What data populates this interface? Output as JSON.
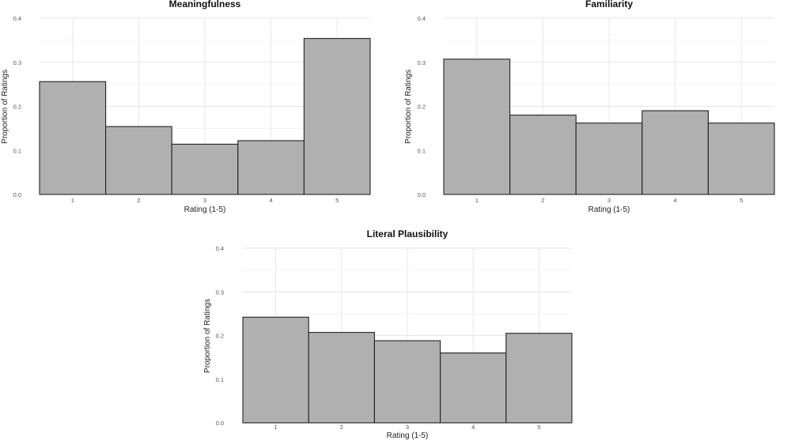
{
  "chart_data": [
    {
      "type": "bar",
      "title": "Meaningfulness",
      "xlabel": "Rating (1-5)",
      "ylabel": "Proportion of Ratings",
      "categories": [
        "1",
        "2",
        "3",
        "4",
        "5"
      ],
      "values": [
        0.256,
        0.154,
        0.114,
        0.122,
        0.354
      ],
      "ylim": [
        0,
        0.4
      ],
      "yticks": [
        "0.0",
        "0.1",
        "0.2",
        "0.3",
        "0.4"
      ],
      "grid": true,
      "bar_color": "#b0b0b0"
    },
    {
      "type": "bar",
      "title": "Familiarity",
      "xlabel": "Rating (1-5)",
      "ylabel": "Proportion of Ratings",
      "categories": [
        "1",
        "2",
        "3",
        "4",
        "5"
      ],
      "values": [
        0.307,
        0.18,
        0.162,
        0.19,
        0.162
      ],
      "ylim": [
        0,
        0.4
      ],
      "yticks": [
        "0.0",
        "0.1",
        "0.2",
        "0.3",
        "0.4"
      ],
      "grid": true,
      "bar_color": "#b0b0b0"
    },
    {
      "type": "bar",
      "title": "Literal Plausibility",
      "xlabel": "Rating (1-5)",
      "ylabel": "Proportion of Ratings",
      "categories": [
        "1",
        "2",
        "3",
        "4",
        "5"
      ],
      "values": [
        0.242,
        0.207,
        0.188,
        0.16,
        0.205
      ],
      "ylim": [
        0,
        0.4
      ],
      "yticks": [
        "0.0",
        "0.1",
        "0.2",
        "0.3",
        "0.4"
      ],
      "grid": true,
      "bar_color": "#b0b0b0"
    }
  ]
}
